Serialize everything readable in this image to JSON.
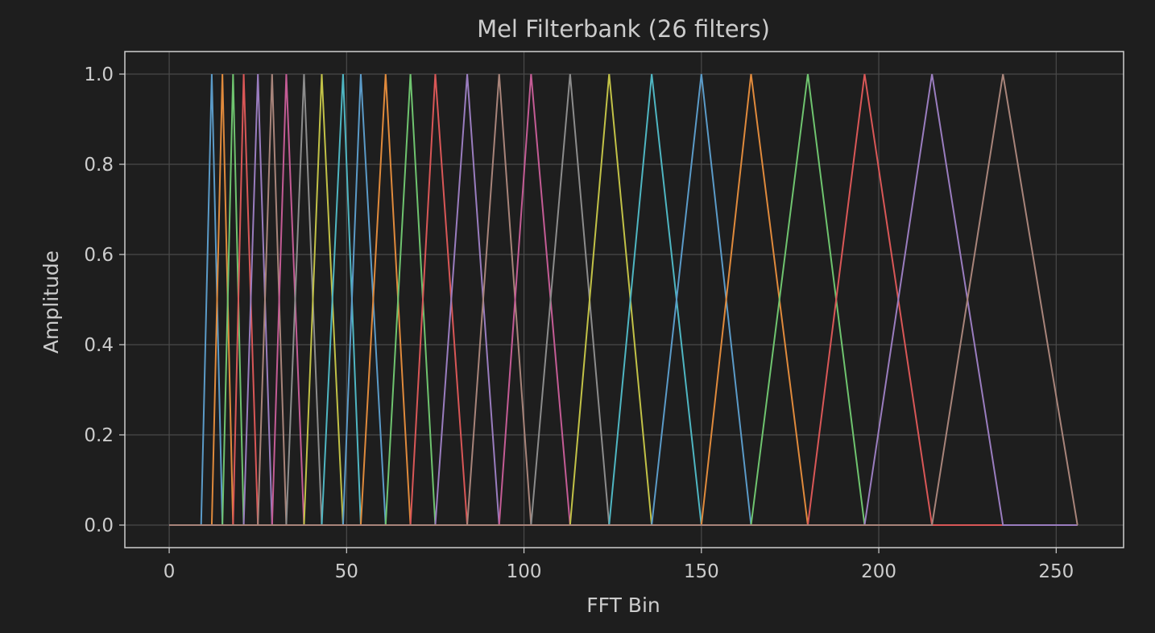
{
  "chart_data": {
    "type": "line",
    "title": "Mel Filterbank (26 filters)",
    "xlabel": "FFT Bin",
    "ylabel": "Amplitude",
    "xlim": [
      -12.5,
      269
    ],
    "ylim": [
      -0.05,
      1.05
    ],
    "xticks": [
      0,
      50,
      100,
      150,
      200,
      250
    ],
    "yticks": [
      0.0,
      0.2,
      0.4,
      0.6,
      0.8,
      1.0
    ],
    "xtick_labels": [
      "0",
      "50",
      "100",
      "150",
      "200",
      "250"
    ],
    "ytick_labels": [
      "0.0",
      "0.2",
      "0.4",
      "0.6",
      "0.8",
      "1.0"
    ],
    "grid": true,
    "legend": "none",
    "x_domain": [
      0,
      256
    ],
    "filter_points": [
      9,
      12,
      15,
      18,
      21,
      25,
      29,
      33,
      38,
      43,
      49,
      54,
      61,
      68,
      75,
      84,
      93,
      102,
      113,
      124,
      136,
      150,
      164,
      180,
      196,
      215,
      235,
      256
    ],
    "series_note_count": 26,
    "colors": [
      "#5b9bc8",
      "#e08a3c",
      "#6fc46f",
      "#d95757",
      "#9a7dbf",
      "#a8847a",
      "#c45c95",
      "#8c8c8c",
      "#c2c247",
      "#4fb6c2"
    ],
    "style": {
      "background": "#1e1e1e",
      "plot_background": "#1e1e1e",
      "axes_edge": "#cfcfcf",
      "grid": "#4a4a4a",
      "text": "#cccccc"
    }
  }
}
